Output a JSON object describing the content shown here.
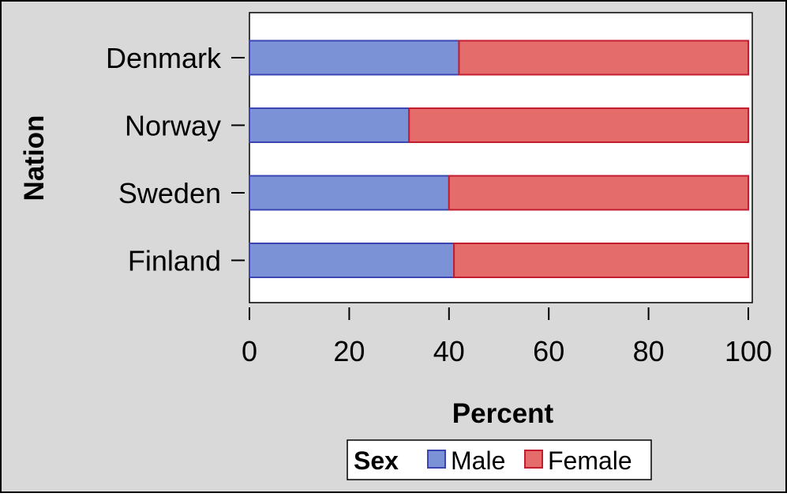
{
  "chart_data": {
    "type": "bar",
    "orientation": "horizontal",
    "stacked": true,
    "categories": [
      "Denmark",
      "Norway",
      "Sweden",
      "Finland"
    ],
    "series": [
      {
        "name": "Male",
        "values": [
          42,
          32,
          40,
          41
        ]
      },
      {
        "name": "Female",
        "values": [
          58,
          68,
          60,
          59
        ]
      }
    ],
    "xlabel": "Percent",
    "ylabel": "Nation",
    "xlim": [
      0,
      100
    ],
    "xticks": [
      0,
      20,
      40,
      60,
      80,
      100
    ],
    "legend": {
      "title": "Sex",
      "placement": "bottom-center"
    },
    "grid": false,
    "colors": {
      "background": "#d9d9d9",
      "plot_background": "#ffffff",
      "Male": "#7b93d6",
      "Male_edge": "#3b44b0",
      "Female": "#e46d6c",
      "Female_edge": "#c21c2e"
    }
  }
}
